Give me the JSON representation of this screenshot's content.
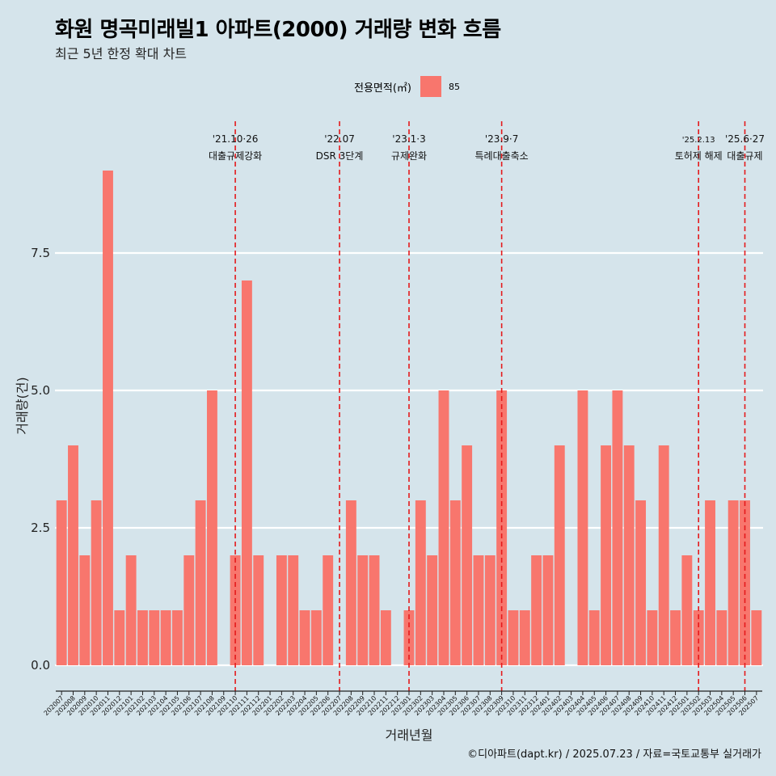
{
  "title": "화원 명곡미래빌1 아파트(2000) 거래량 변화 흐름",
  "subtitle": "최근 5년 한정 확대 차트",
  "legend": {
    "title": "전용면적(㎡)",
    "item": "85",
    "color": "#f8766d"
  },
  "caption": "©디아파트(dapt.kr) / 2025.07.23 / 자료=국토교통부 실거래가",
  "chart_data": {
    "type": "bar",
    "xlabel": "거래년월",
    "ylabel": "거래량(건)",
    "ylim": [
      0,
      9.5
    ],
    "yticks": [
      0,
      2.5,
      5,
      7.5
    ],
    "ytick_labels": [
      "0.0",
      "2.5",
      "5.0",
      "7.5"
    ],
    "grid": true,
    "bar_color": "#f8766d",
    "categories": [
      "202007",
      "202008",
      "202009",
      "202010",
      "202011",
      "202012",
      "202101",
      "202102",
      "202103",
      "202104",
      "202105",
      "202106",
      "202107",
      "202108",
      "202109",
      "202110",
      "202111",
      "202112",
      "202201",
      "202202",
      "202203",
      "202204",
      "202205",
      "202206",
      "202207",
      "202208",
      "202209",
      "202210",
      "202211",
      "202212",
      "202301",
      "202302",
      "202303",
      "202304",
      "202305",
      "202306",
      "202307",
      "202308",
      "202309",
      "202310",
      "202311",
      "202312",
      "202401",
      "202402",
      "202403",
      "202404",
      "202405",
      "202406",
      "202407",
      "202408",
      "202409",
      "202410",
      "202411",
      "202412",
      "202501",
      "202502",
      "202503",
      "202504",
      "202505",
      "202506",
      "202507"
    ],
    "series": [
      {
        "name": "85",
        "values": [
          3,
          4,
          2,
          3,
          9,
          1,
          2,
          1,
          1,
          1,
          1,
          2,
          3,
          5,
          0,
          2,
          7,
          2,
          0,
          2,
          2,
          1,
          1,
          2,
          0,
          3,
          2,
          2,
          1,
          0,
          1,
          3,
          2,
          5,
          3,
          4,
          2,
          2,
          5,
          1,
          1,
          2,
          2,
          4,
          0,
          5,
          1,
          4,
          5,
          4,
          3,
          1,
          4,
          1,
          2,
          1,
          3,
          1,
          3,
          3,
          1
        ]
      }
    ],
    "events": [
      {
        "category": "202110",
        "date": "'21.10·26",
        "label": "대출규제강화"
      },
      {
        "category": "202207",
        "date": "'22.07",
        "label": "DSR 3단계"
      },
      {
        "category": "202301",
        "date": "'23.1·3",
        "label": "규제완화"
      },
      {
        "category": "202309",
        "date": "'23.9·7",
        "label": "특례대출축소"
      },
      {
        "category": "202502",
        "date": "'25.2.13",
        "label": "토허제 해제"
      },
      {
        "category": "202506",
        "date": "'25.6·27",
        "label": "대출규제"
      }
    ],
    "event_line_color": "#e41a1c"
  }
}
